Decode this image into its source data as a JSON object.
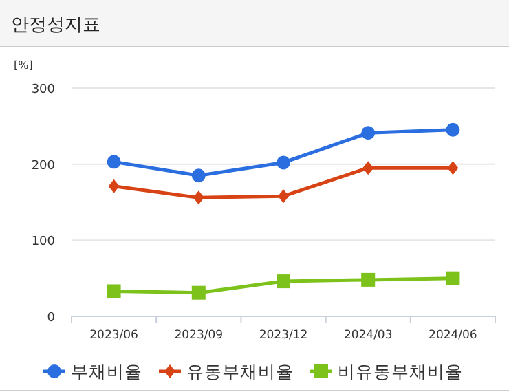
{
  "chart_data": {
    "type": "line",
    "title": "안정성지표",
    "ylabel": "[%]",
    "categories": [
      "2023/06",
      "2023/09",
      "2023/12",
      "2024/03",
      "2024/06"
    ],
    "series": [
      {
        "name": "부채비율",
        "color": "#2a6ee0",
        "marker": "circle",
        "values": [
          203,
          185,
          202,
          241,
          245
        ]
      },
      {
        "name": "유동부채비율",
        "color": "#d84315",
        "marker": "diamond",
        "values": [
          171,
          156,
          158,
          195,
          195
        ]
      },
      {
        "name": "비유동부채비율",
        "color": "#7cc21b",
        "marker": "square",
        "values": [
          33,
          31,
          46,
          48,
          50
        ]
      }
    ],
    "ylim": [
      0,
      300
    ],
    "yticks": [
      0,
      100,
      200,
      300
    ],
    "grid": "y",
    "legend": "bottom",
    "line_style": "solid"
  }
}
